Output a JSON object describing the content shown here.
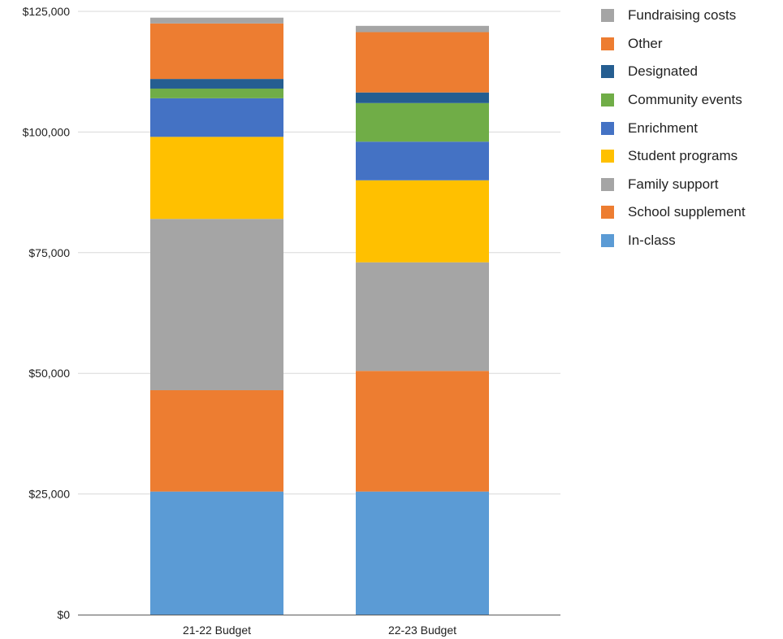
{
  "chart_data": {
    "type": "bar",
    "stacked": true,
    "categories": [
      "21-22 Budget",
      "22-23 Budget"
    ],
    "ylim": [
      0,
      125000
    ],
    "yticks": [
      0,
      25000,
      50000,
      75000,
      100000,
      125000
    ],
    "ytick_labels": [
      "$0",
      "$25,000",
      "$50,000",
      "$75,000",
      "$100,000",
      "$125,000"
    ],
    "grid": true,
    "legend_position": "top-right",
    "series": [
      {
        "name": "In-class",
        "color": "#5B9BD5",
        "values": [
          25500,
          25500
        ]
      },
      {
        "name": "School supplement",
        "color": "#ED7D31",
        "values": [
          21000,
          25000
        ]
      },
      {
        "name": "Family support",
        "color": "#A5A5A5",
        "values": [
          35500,
          22500
        ]
      },
      {
        "name": "Student programs",
        "color": "#FFC000",
        "values": [
          17000,
          17000
        ]
      },
      {
        "name": "Enrichment",
        "color": "#4472C4",
        "values": [
          8000,
          8000
        ]
      },
      {
        "name": "Community events",
        "color": "#70AD47",
        "values": [
          2000,
          8000
        ]
      },
      {
        "name": "Designated",
        "color": "#255E91",
        "values": [
          2000,
          2200
        ]
      },
      {
        "name": "Other",
        "color": "#ED7D31",
        "values": [
          11500,
          12500
        ]
      },
      {
        "name": "Fundraising costs",
        "color": "#A5A5A5",
        "values": [
          1200,
          1300
        ]
      }
    ]
  },
  "legend": [
    {
      "label": "Fundraising costs",
      "color": "#A5A5A5"
    },
    {
      "label": "Other",
      "color": "#ED7D31"
    },
    {
      "label": "Designated",
      "color": "#255E91"
    },
    {
      "label": "Community events",
      "color": "#70AD47"
    },
    {
      "label": "Enrichment",
      "color": "#4472C4"
    },
    {
      "label": "Student programs",
      "color": "#FFC000"
    },
    {
      "label": "Family support",
      "color": "#A5A5A5"
    },
    {
      "label": "School supplement",
      "color": "#ED7D31"
    },
    {
      "label": "In-class",
      "color": "#5B9BD5"
    }
  ]
}
